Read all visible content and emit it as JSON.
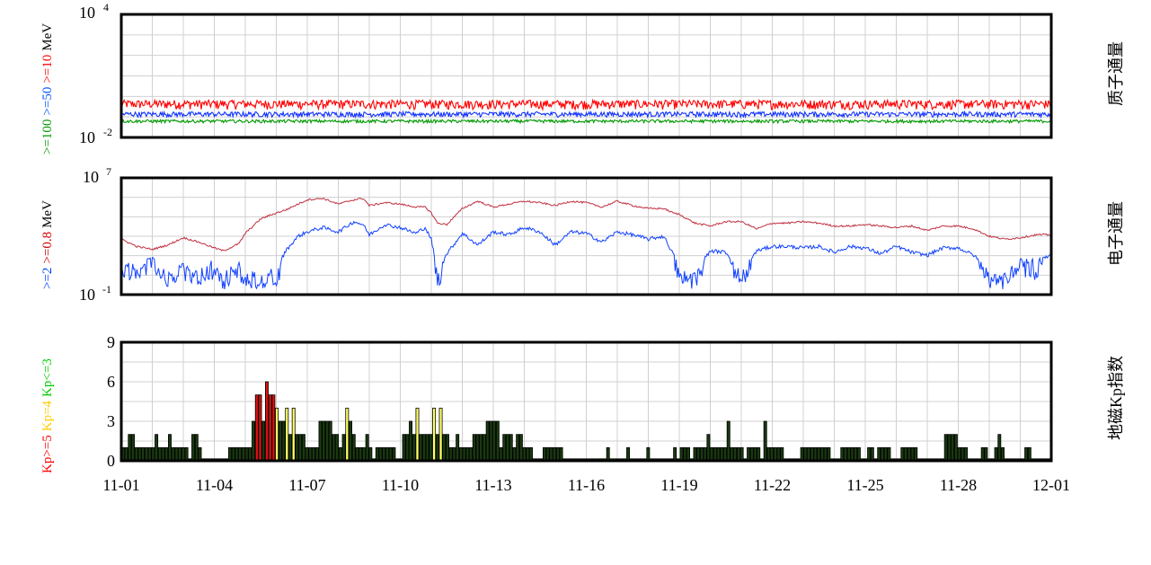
{
  "chart_data": [
    {
      "type": "line",
      "title": "质子通量",
      "scale": "log",
      "ylim_exponent": [
        -2,
        4
      ],
      "tick_labels": [
        {
          "base": "10",
          "exp": "4"
        },
        {
          "base": "10",
          "exp": "-2"
        }
      ],
      "xlim": [
        "11-01",
        "12-01"
      ],
      "side_label": [
        {
          "text": ">=100",
          "color": "#009900"
        },
        {
          "text": ">=50",
          "color": "#0055ff"
        },
        {
          "text": ">=10",
          "color": "#ff0000"
        },
        {
          "text": "MeV",
          "color": "#000000"
        }
      ],
      "series": [
        {
          "name": ">=10",
          "color": "#ff0000",
          "level": 0.4,
          "noise": 0.18
        },
        {
          "name": ">=50",
          "color": "#1030ff",
          "level": 0.13,
          "noise": 0.1
        },
        {
          "name": ">=100",
          "color": "#009900",
          "level": 0.06,
          "noise": 0.06
        }
      ]
    },
    {
      "type": "line",
      "title": "电子通量",
      "scale": "log",
      "ylim_exponent": [
        -1,
        7
      ],
      "tick_labels": [
        {
          "base": "10",
          "exp": "7"
        },
        {
          "base": "10",
          "exp": "-1"
        }
      ],
      "xlim": [
        "11-01",
        "12-01"
      ],
      "side_label": [
        {
          "text": ">=2",
          "color": "#0040ff"
        },
        {
          "text": ">=0.8",
          "color": "#cc0000"
        },
        {
          "text": "MeV",
          "color": "#000000"
        }
      ],
      "series": [
        {
          "name": ">=0.8",
          "color": "#c03040",
          "x": [
            0,
            0.5,
            1,
            1.5,
            2,
            2.5,
            3,
            3.3,
            3.8,
            4,
            4.5,
            5,
            5.3,
            5.7,
            6,
            6.5,
            7,
            7.5,
            7.8,
            8,
            8.5,
            9,
            9.5,
            9.8,
            10,
            10.2,
            10.5,
            11,
            11.5,
            12,
            12.5,
            13,
            13.5,
            14,
            14.5,
            15,
            15.5,
            16,
            16.5,
            17,
            17.5,
            17.8,
            18,
            18.5,
            19,
            19.5,
            20,
            20.5,
            21,
            21.5,
            22,
            22.5,
            23,
            23.5,
            24,
            24.5,
            25,
            25.5,
            26,
            26.5,
            27,
            27.5,
            28,
            28.5,
            29,
            29.5,
            30
          ],
          "y": [
            2.8,
            2.3,
            2.1,
            2.4,
            2.9,
            2.6,
            2.2,
            2.0,
            2.5,
            3.2,
            4.2,
            4.6,
            4.8,
            5.2,
            5.5,
            5.6,
            5.2,
            5.5,
            5.6,
            5.1,
            5.3,
            5.2,
            5.0,
            5.0,
            4.6,
            3.9,
            3.8,
            4.9,
            5.4,
            5.0,
            5.2,
            5.4,
            5.3,
            5.1,
            5.4,
            5.3,
            5.0,
            5.4,
            5.1,
            4.9,
            4.9,
            4.6,
            4.5,
            3.9,
            3.7,
            4.0,
            4.0,
            3.5,
            3.9,
            3.9,
            4.0,
            3.9,
            3.7,
            3.7,
            3.8,
            3.7,
            3.6,
            3.7,
            3.4,
            3.7,
            3.7,
            3.5,
            3.0,
            2.8,
            2.9,
            3.1,
            3.1
          ]
        },
        {
          "name": ">=2",
          "color": "#1040ff",
          "x": [
            0,
            0.5,
            1,
            1.5,
            2,
            2.5,
            3,
            3.3,
            3.8,
            4,
            4.5,
            5,
            5.3,
            5.7,
            6,
            6.5,
            7,
            7.5,
            7.8,
            8,
            8.5,
            9,
            9.5,
            9.8,
            10,
            10.2,
            10.5,
            11,
            11.5,
            12,
            12.5,
            13,
            13.5,
            14,
            14.5,
            15,
            15.5,
            16,
            16.5,
            17,
            17.5,
            17.8,
            18,
            18.5,
            19,
            19.5,
            20,
            20.5,
            21,
            21.5,
            22,
            22.5,
            23,
            23.5,
            24,
            24.5,
            25,
            25.5,
            26,
            26.5,
            27,
            27.5,
            28,
            28.5,
            29,
            29.5,
            30
          ],
          "y": [
            1.2,
            1.0,
            1.5,
            0.6,
            1.2,
            0.6,
            1.4,
            0.5,
            1.3,
            0.5,
            0.6,
            0.7,
            2.0,
            3.0,
            3.3,
            3.6,
            3.3,
            4.0,
            3.8,
            3.1,
            3.8,
            3.6,
            3.2,
            3.6,
            2.8,
            0.5,
            1.8,
            3.2,
            2.4,
            3.3,
            3.1,
            3.6,
            3.3,
            2.4,
            3.3,
            3.2,
            2.6,
            3.3,
            3.1,
            2.8,
            3.0,
            1.8,
            0.8,
            0.5,
            2.0,
            1.9,
            0.5,
            2.0,
            2.3,
            2.3,
            2.2,
            2.3,
            1.9,
            2.3,
            2.2,
            1.8,
            2.3,
            1.9,
            1.7,
            2.2,
            2.2,
            1.7,
            0.6,
            0.6,
            1.4,
            1.3,
            1.7
          ]
        }
      ]
    },
    {
      "type": "bar",
      "title": "地磁Kp指数",
      "ylim": [
        0,
        9
      ],
      "yticks": [
        "9",
        "6",
        "3",
        "0"
      ],
      "xlim": [
        "11-01",
        "12-01"
      ],
      "side_label": [
        {
          "text": "Kp>=5",
          "color": "#ff0000"
        },
        {
          "text": "Kp=4",
          "color": "#ffcc00"
        },
        {
          "text": "Kp<=3",
          "color": "#00cc00"
        }
      ],
      "colors": {
        "low": "#1a3a10",
        "mid": "#ffff66",
        "high": "#dd1111"
      },
      "kp_values_3h": [
        1,
        1,
        2,
        2,
        1,
        1,
        1,
        1,
        1,
        1,
        2,
        1,
        1,
        1,
        2,
        1,
        1,
        1,
        1,
        1,
        0,
        2,
        2,
        1,
        0,
        0,
        0,
        0,
        0,
        0,
        0,
        0,
        1,
        1,
        1,
        1,
        1,
        1,
        1,
        3,
        5,
        5,
        3,
        6,
        5,
        5,
        4,
        3,
        3,
        4,
        2,
        4,
        2,
        2,
        2,
        1,
        1,
        1,
        1,
        3,
        3,
        3,
        3,
        2,
        2,
        1,
        2,
        4,
        3,
        2,
        1,
        1,
        1,
        2,
        1,
        0,
        1,
        1,
        1,
        1,
        1,
        1,
        0,
        0,
        2,
        2,
        3,
        2,
        4,
        2,
        2,
        2,
        2,
        4,
        2,
        4,
        2,
        2,
        1,
        1,
        2,
        1,
        1,
        1,
        1,
        2,
        2,
        2,
        2,
        3,
        3,
        3,
        3,
        1,
        2,
        2,
        2,
        1,
        2,
        2,
        1,
        1,
        1,
        0,
        0,
        0,
        1,
        1,
        1,
        1,
        1,
        1,
        0,
        0,
        0,
        0,
        0,
        0,
        0,
        0,
        0,
        0,
        0,
        0,
        0,
        1,
        0,
        0,
        0,
        0,
        0,
        1,
        0,
        0,
        0,
        0,
        0,
        1,
        0,
        0,
        0,
        0,
        0,
        0,
        0,
        1,
        0,
        1,
        1,
        1,
        0,
        1,
        1,
        1,
        1,
        2,
        1,
        1,
        1,
        1,
        1,
        3,
        1,
        1,
        1,
        1,
        0,
        1,
        1,
        1,
        1,
        0,
        3,
        1,
        1,
        1,
        1,
        1,
        0,
        0,
        0,
        0,
        0,
        1,
        1,
        1,
        1,
        1,
        1,
        1,
        1,
        1,
        0,
        0,
        0,
        1,
        1,
        1,
        1,
        1,
        1,
        0,
        0,
        1,
        1,
        0,
        1,
        1,
        1,
        1,
        0,
        0,
        0,
        1,
        1,
        1,
        1,
        1,
        0,
        0,
        0,
        0,
        0,
        0,
        0,
        0,
        2,
        2,
        2,
        2,
        1,
        1,
        1,
        0,
        0,
        0,
        0,
        1,
        1,
        0,
        0,
        1,
        2,
        1,
        0,
        0,
        0,
        0,
        0,
        0,
        1,
        1,
        0,
        0,
        0,
        0,
        0,
        0
      ]
    }
  ],
  "x_tick_labels": [
    "11-01",
    "11-04",
    "11-07",
    "11-10",
    "11-13",
    "11-16",
    "11-19",
    "11-22",
    "11-25",
    "11-28",
    "12-01"
  ]
}
